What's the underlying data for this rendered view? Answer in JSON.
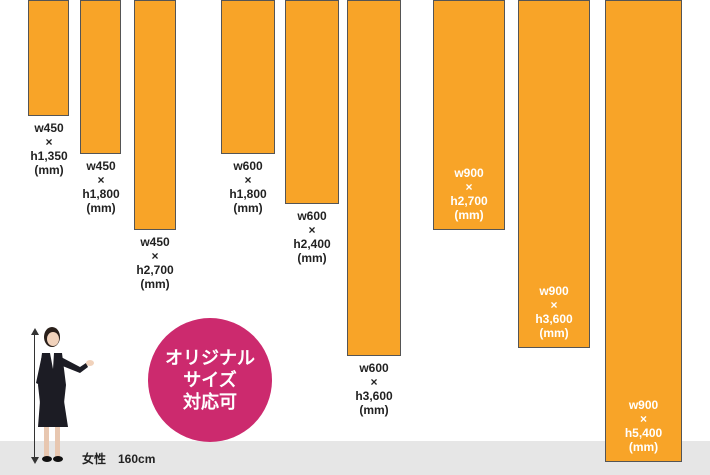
{
  "banners": [
    {
      "id": "w450-h1350",
      "label": "w450\n×\nh1,350\n(mm)"
    },
    {
      "id": "w450-h1800",
      "label": "w450\n×\nh1,800\n(mm)"
    },
    {
      "id": "w450-h2700",
      "label": "w450\n×\nh2,700\n(mm)"
    },
    {
      "id": "w600-h1800",
      "label": "w600\n×\nh1,800\n(mm)"
    },
    {
      "id": "w600-h2400",
      "label": "w600\n×\nh2,400\n(mm)"
    },
    {
      "id": "w600-h3600",
      "label": "w600\n×\nh3,600\n(mm)"
    },
    {
      "id": "w900-h2700",
      "label": "w900\n×\nh2,700\n(mm)"
    },
    {
      "id": "w900-h3600",
      "label": "w900\n×\nh3,600\n(mm)"
    },
    {
      "id": "w900-h5400",
      "label": "w900\n×\nh5,400\n(mm)"
    }
  ],
  "badge": {
    "text": "オリジナル\nサイズ\n対応可"
  },
  "reference": {
    "caption": "女性　160cm"
  },
  "colors": {
    "banner": "#f8a428",
    "badge": "#cc2a6e",
    "floor": "#e6e6e6"
  }
}
